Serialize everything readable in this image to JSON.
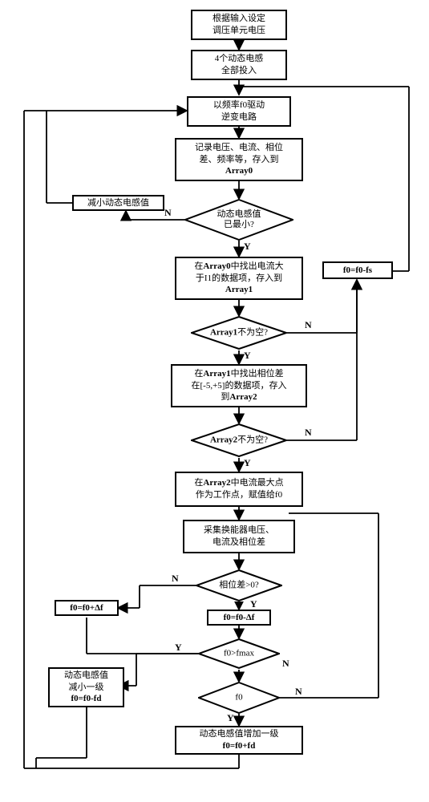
{
  "type": "flowchart",
  "background_color": "#ffffff",
  "border_color": "#000000",
  "line_width": 2,
  "font_family": "SimSun",
  "font_size": 11,
  "nodes": {
    "n1": {
      "kind": "process",
      "text": "根据输入设定\n调压单元电压"
    },
    "n2": {
      "kind": "process",
      "text": "4个动态电感\n全部投入"
    },
    "n3": {
      "kind": "process",
      "text": "以频率f0驱动\n逆变电路"
    },
    "n4": {
      "kind": "process",
      "text": "记录电压、电流、相位\n差、频率等，存入到\nArray0"
    },
    "d1": {
      "kind": "decision",
      "text": "动态电感值\n已最小?"
    },
    "n5": {
      "kind": "process",
      "text": "减小动态电感值"
    },
    "n6": {
      "kind": "process",
      "text": "在Array0中找出电流大\n于I1的数据项，存入到\nArray1"
    },
    "d2": {
      "kind": "decision",
      "text": "Array1不为空?"
    },
    "n7": {
      "kind": "process",
      "text": "在Array1中找出相位差\n在[-5,+5]的数据项，存入\n到Array2"
    },
    "d3": {
      "kind": "decision",
      "text": "Array2不为空?"
    },
    "n8": {
      "kind": "process",
      "text": "在Array2中电流最大点\n作为工作点，赋值给f0"
    },
    "n8b": {
      "kind": "process",
      "text": "f0=f0-fs"
    },
    "n9": {
      "kind": "process",
      "text": "采集换能器电压、\n电流及相位差"
    },
    "d4": {
      "kind": "decision",
      "text": "相位差>0?"
    },
    "n10": {
      "kind": "process",
      "text": "f0=f0+Δf"
    },
    "n11": {
      "kind": "process",
      "text": "f0=f0-Δf"
    },
    "d5": {
      "kind": "decision",
      "text": "f0>fmax"
    },
    "d6": {
      "kind": "decision",
      "text": "f0<fmin"
    },
    "n12": {
      "kind": "process",
      "text": "动态电感值\n减小一级\nf0=f0-fd"
    },
    "n13": {
      "kind": "process",
      "text": "动态电感值增加一级\nf0=f0+fd"
    }
  },
  "labels": {
    "yes": "Y",
    "no": "N"
  },
  "edges": [
    [
      "n1",
      "n2"
    ],
    [
      "n2",
      "n3"
    ],
    [
      "n3",
      "n4"
    ],
    [
      "n4",
      "d1"
    ],
    [
      "d1",
      "n5",
      "N"
    ],
    [
      "d1",
      "n6",
      "Y"
    ],
    [
      "n5",
      "n3",
      "loop"
    ],
    [
      "n6",
      "d2"
    ],
    [
      "d2",
      "n7",
      "Y"
    ],
    [
      "d2",
      "n8b",
      "N"
    ],
    [
      "n7",
      "d3"
    ],
    [
      "d3",
      "n8",
      "Y"
    ],
    [
      "d3",
      "n8b",
      "N"
    ],
    [
      "n8b",
      "n3",
      "loop"
    ],
    [
      "n8",
      "n9"
    ],
    [
      "n9",
      "d4"
    ],
    [
      "d4",
      "n10",
      "N"
    ],
    [
      "d4",
      "n11",
      "Y"
    ],
    [
      "n10",
      "d5"
    ],
    [
      "n11",
      "d5"
    ],
    [
      "d5",
      "n12",
      "Y"
    ],
    [
      "d5",
      "d6",
      "N"
    ],
    [
      "d6",
      "n13",
      "Y"
    ],
    [
      "d6",
      "n9",
      "N"
    ],
    [
      "n12",
      "n3",
      "loop"
    ],
    [
      "n13",
      "n3",
      "loop"
    ]
  ]
}
